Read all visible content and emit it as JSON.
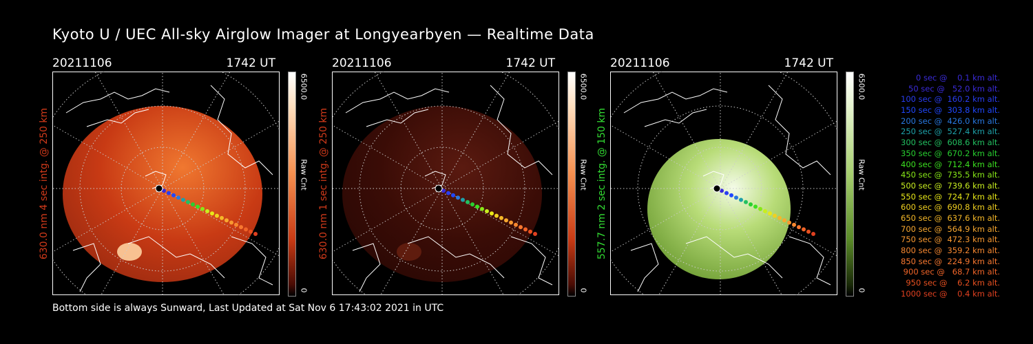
{
  "title": "Kyoto U / UEC All-sky Airglow Imager at Longyearbyen — Realtime Data",
  "footer": "Bottom side is always Sunward, Last Updated at Sat Nov  6 17:43:02 2021 in UTC",
  "panels": [
    {
      "date": "20211106",
      "time": "1742 UT",
      "ylabel": "630.0 nm 4 sec intg. @ 250 km",
      "cbar_max": "6500.0",
      "cbar_unit": "Raw Cnt",
      "cbar_min": "0",
      "color": "#d23a1a",
      "cmap": "red"
    },
    {
      "date": "20211106",
      "time": "1742 UT",
      "ylabel": "630.0 nm 1 sec intg. @ 250 km",
      "cbar_max": "6500.0",
      "cbar_unit": "Raw Cnt",
      "cbar_min": "0",
      "color": "#d23a1a",
      "cmap": "red"
    },
    {
      "date": "20211106",
      "time": "1742 UT",
      "ylabel": "557.7 nm 2 sec intg. @ 150 km",
      "cbar_max": "6500.0",
      "cbar_unit": "Raw Cnt",
      "cbar_min": "0",
      "color": "#33dd33",
      "cmap": "green"
    }
  ],
  "legend": [
    {
      "text": "   0 sec @    0.1 km alt.",
      "color": "#3a2bd8"
    },
    {
      "text": "  50 sec @   52.0 km alt.",
      "color": "#3a2bd8"
    },
    {
      "text": " 100 sec @  160.2 km alt.",
      "color": "#2a3ef0"
    },
    {
      "text": " 150 sec @  303.8 km alt.",
      "color": "#2048ff"
    },
    {
      "text": " 200 sec @  426.0 km alt.",
      "color": "#2878e0"
    },
    {
      "text": " 250 sec @  527.4 km alt.",
      "color": "#1ea0a8"
    },
    {
      "text": " 300 sec @  608.6 km alt.",
      "color": "#22c060"
    },
    {
      "text": " 350 sec @  670.2 km alt.",
      "color": "#28d030"
    },
    {
      "text": " 400 sec @  712.4 km alt.",
      "color": "#3ce020"
    },
    {
      "text": " 450 sec @  735.5 km alt.",
      "color": "#88e818"
    },
    {
      "text": " 500 sec @  739.6 km alt.",
      "color": "#c8ee20"
    },
    {
      "text": " 550 sec @  724.7 km alt.",
      "color": "#e8e818"
    },
    {
      "text": " 600 sec @  690.8 km alt.",
      "color": "#f0d020"
    },
    {
      "text": " 650 sec @  637.6 km alt.",
      "color": "#f5b828"
    },
    {
      "text": " 700 sec @  564.9 km alt.",
      "color": "#f8a830"
    },
    {
      "text": " 750 sec @  472.3 km alt.",
      "color": "#f89830"
    },
    {
      "text": " 800 sec @  359.2 km alt.",
      "color": "#f88830"
    },
    {
      "text": " 850 sec @  224.9 km alt.",
      "color": "#f87830"
    },
    {
      "text": " 900 sec @   68.7 km alt.",
      "color": "#f06428"
    },
    {
      "text": " 950 sec @    6.2 km alt.",
      "color": "#e85020"
    },
    {
      "text": "1000 sec @    0.4 km alt.",
      "color": "#e04020"
    }
  ]
}
